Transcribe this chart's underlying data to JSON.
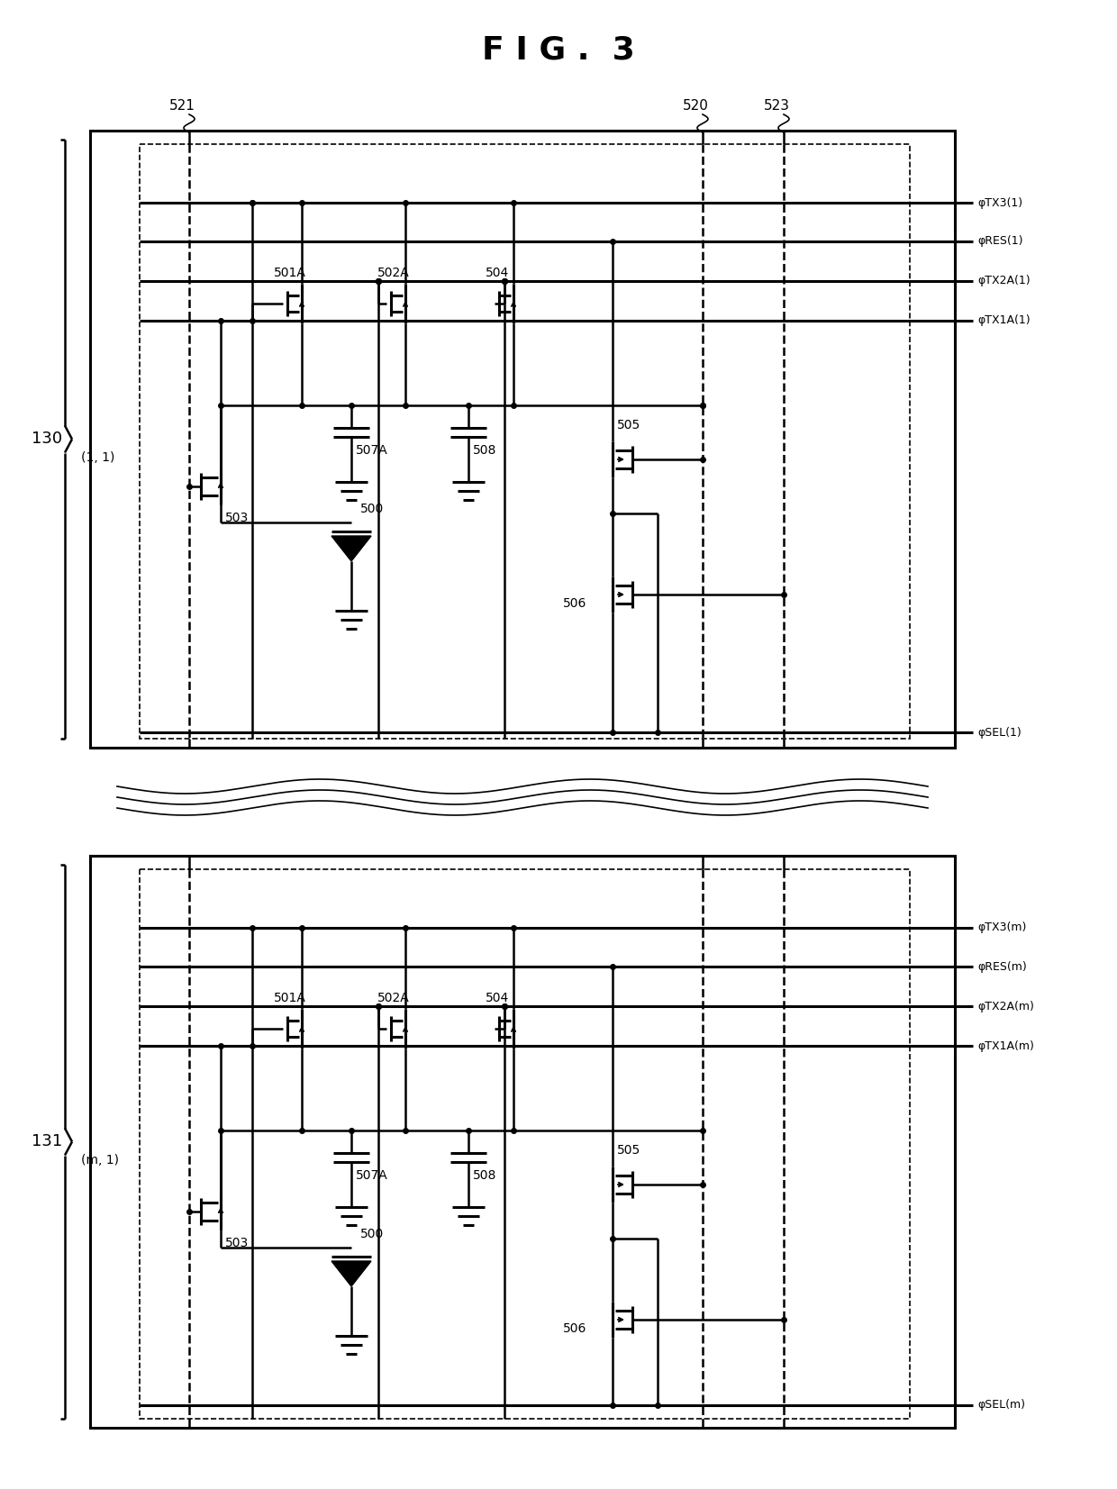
{
  "title": "F I G .  3",
  "bg_color": "#ffffff",
  "line_color": "#000000",
  "fig_width": 12.4,
  "fig_height": 16.53,
  "title_fontsize": 26,
  "signal_labels_top": [
    "φTX3(1)",
    "φRES(1)",
    "φTX2A(1)",
    "φTX1A(1)",
    "φSEL(1)"
  ],
  "signal_labels_bot": [
    "φTX3(m)",
    "φRES(m)",
    "φTX2A(m)",
    "φTX1A(m)",
    "φSEL(m)"
  ],
  "component_labels_top": [
    "501A",
    "502A",
    "504",
    "503",
    "507A",
    "508",
    "505",
    "500",
    "506"
  ],
  "component_labels_bot": [
    "501A",
    "502A",
    "504",
    "503",
    "507A",
    "508",
    "505",
    "500",
    "506"
  ],
  "block_labels": [
    "521",
    "520",
    "523",
    "130",
    "(1, 1)",
    "131",
    "(m, 1)"
  ]
}
